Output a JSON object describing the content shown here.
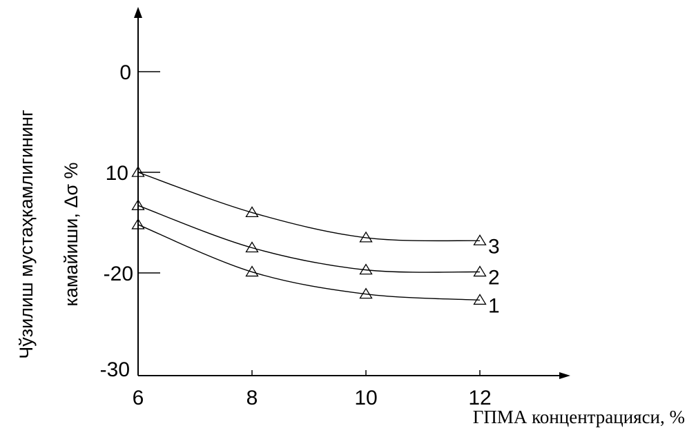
{
  "chart_data": {
    "type": "line",
    "x_ticks": [
      "6",
      "8",
      "10",
      "12"
    ],
    "y_ticks": [
      "0",
      "10",
      "20",
      "30"
    ],
    "xlim": [
      6,
      13.5
    ],
    "ylim": [
      -30,
      5
    ],
    "xlabel": "ГПМА концентрацияси, %",
    "ylabel_line1": "Чўзилиш мустаҳкамлигининг",
    "ylabel_line2": "камайиши, Δσ %",
    "grid": false,
    "series": [
      {
        "name": "3",
        "x": [
          6,
          8,
          10,
          12
        ],
        "y": [
          -10,
          -14,
          -16.5,
          -16.8
        ]
      },
      {
        "name": "2",
        "x": [
          6,
          8,
          10,
          12
        ],
        "y": [
          -13.3,
          -17.5,
          -19.7,
          -19.9
        ]
      },
      {
        "name": "1",
        "x": [
          6,
          8,
          10,
          12
        ],
        "y": [
          -15.2,
          -19.9,
          -22.1,
          -22.7
        ]
      }
    ]
  }
}
